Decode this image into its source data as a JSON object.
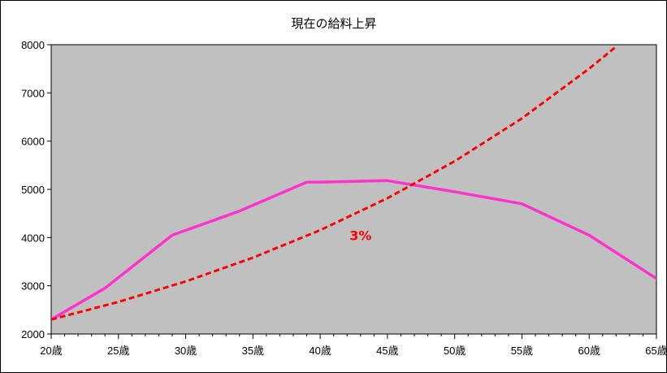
{
  "chart_data": {
    "type": "line",
    "title": "現在の給料上昇",
    "xlabel": "",
    "ylabel": "",
    "x_ticks": [
      "20歳",
      "25歳",
      "30歳",
      "35歳",
      "40歳",
      "45歳",
      "50歳",
      "55歳",
      "60歳",
      "65歳"
    ],
    "y_ticks": [
      "2000",
      "3000",
      "4000",
      "5000",
      "6000",
      "7000",
      "8000"
    ],
    "xlim": [
      20,
      65
    ],
    "ylim": [
      2000,
      8000
    ],
    "grid": false,
    "legend": "none",
    "plot_background": "#c0c0c0",
    "series": [
      {
        "color": "#ff33cc",
        "style": "solid",
        "x": [
          20,
          24,
          29,
          34,
          39,
          40,
          45,
          50,
          55,
          60,
          65
        ],
        "y": [
          2300,
          2950,
          4050,
          4550,
          5150,
          5150,
          5180,
          4950,
          4700,
          4050,
          3150
        ]
      },
      {
        "color": "#ff0000",
        "style": "dashed",
        "growth_rate": 0.03,
        "x": [
          20,
          25,
          30,
          35,
          40,
          45,
          50,
          55,
          60,
          62
        ],
        "y": [
          2300,
          2666,
          3091,
          3583,
          4154,
          4816,
          5583,
          6472,
          7503,
          7960
        ]
      }
    ],
    "annotations": [
      {
        "text": "3%",
        "color": "#ff0000",
        "x": 43,
        "y": 4050
      }
    ]
  }
}
